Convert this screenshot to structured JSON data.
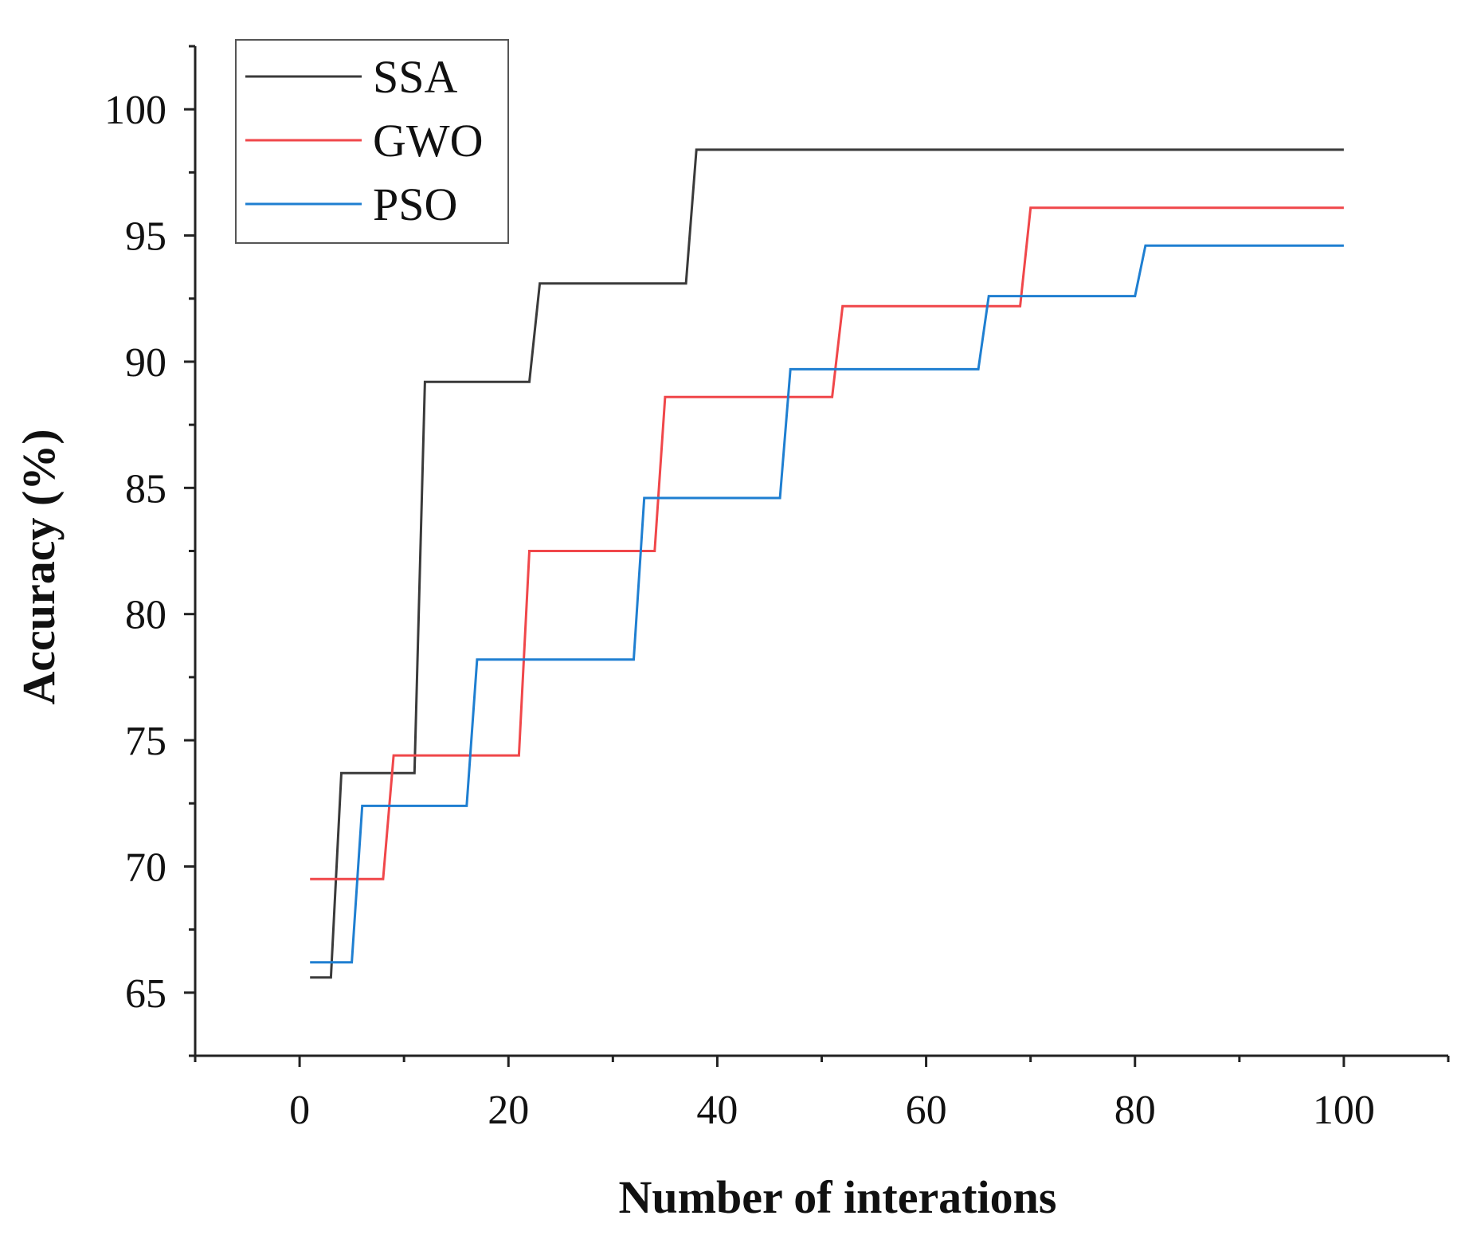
{
  "chart_data": {
    "type": "line",
    "step": true,
    "xlabel": "Number of interations",
    "ylabel": "Accuracy (%)",
    "xlim": [
      -10,
      110
    ],
    "ylim": [
      62.5,
      102.5
    ],
    "xticks": [
      0,
      20,
      40,
      60,
      80,
      100
    ],
    "yticks": [
      65,
      70,
      75,
      80,
      85,
      90,
      95,
      100
    ],
    "grid": false,
    "legend_position": "top-left",
    "series": [
      {
        "name": "SSA",
        "color": "#3a3a3a",
        "points": [
          [
            1,
            65.6
          ],
          [
            3,
            65.6
          ],
          [
            4,
            73.7
          ],
          [
            11,
            73.7
          ],
          [
            12,
            89.2
          ],
          [
            22,
            89.2
          ],
          [
            23,
            93.1
          ],
          [
            37,
            93.1
          ],
          [
            38,
            98.4
          ],
          [
            100,
            98.4
          ]
        ]
      },
      {
        "name": "GWO",
        "color": "#f0474a",
        "points": [
          [
            1,
            69.5
          ],
          [
            8,
            69.5
          ],
          [
            9,
            74.4
          ],
          [
            21,
            74.4
          ],
          [
            22,
            82.5
          ],
          [
            34,
            82.5
          ],
          [
            35,
            88.6
          ],
          [
            51,
            88.6
          ],
          [
            52,
            92.2
          ],
          [
            69,
            92.2
          ],
          [
            70,
            96.1
          ],
          [
            100,
            96.1
          ]
        ]
      },
      {
        "name": "PSO",
        "color": "#1f7fd1",
        "points": [
          [
            1,
            66.2
          ],
          [
            5,
            66.2
          ],
          [
            6,
            72.4
          ],
          [
            16,
            72.4
          ],
          [
            17,
            78.2
          ],
          [
            32,
            78.2
          ],
          [
            33,
            84.6
          ],
          [
            46,
            84.6
          ],
          [
            47,
            89.7
          ],
          [
            65,
            89.7
          ],
          [
            66,
            92.6
          ],
          [
            80,
            92.6
          ],
          [
            81,
            94.6
          ],
          [
            100,
            94.6
          ]
        ]
      }
    ]
  }
}
